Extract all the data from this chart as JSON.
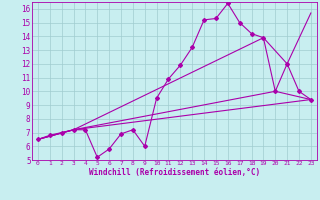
{
  "background_color": "#c8eef0",
  "grid_color": "#a0ccd0",
  "line_color": "#aa00aa",
  "xlabel": "Windchill (Refroidissement éolien,°C)",
  "xlim": [
    -0.5,
    23.5
  ],
  "ylim": [
    5,
    16.5
  ],
  "yticks": [
    5,
    6,
    7,
    8,
    9,
    10,
    11,
    12,
    13,
    14,
    15,
    16
  ],
  "xticks": [
    0,
    1,
    2,
    3,
    4,
    5,
    6,
    7,
    8,
    9,
    10,
    11,
    12,
    13,
    14,
    15,
    16,
    17,
    18,
    19,
    20,
    21,
    22,
    23
  ],
  "series1_x": [
    0,
    1,
    2,
    3,
    4,
    5,
    6,
    7,
    8,
    9,
    10,
    11,
    12,
    13,
    14,
    15,
    16,
    17,
    18,
    19,
    20,
    21,
    22,
    23
  ],
  "series1_y": [
    6.5,
    6.8,
    7.0,
    7.2,
    7.2,
    5.2,
    5.8,
    6.9,
    7.2,
    6.0,
    9.5,
    10.9,
    11.9,
    13.2,
    15.2,
    15.3,
    16.4,
    15.0,
    14.2,
    13.9,
    10.0,
    12.0,
    10.0,
    9.4
  ],
  "series2_x": [
    0,
    3,
    23
  ],
  "series2_y": [
    6.5,
    7.2,
    9.4
  ],
  "series3_x": [
    0,
    3,
    20,
    23
  ],
  "series3_y": [
    6.5,
    7.2,
    10.0,
    9.4
  ],
  "series4_x": [
    0,
    3,
    19,
    21,
    23
  ],
  "series4_y": [
    6.5,
    7.2,
    13.9,
    12.0,
    15.7
  ]
}
